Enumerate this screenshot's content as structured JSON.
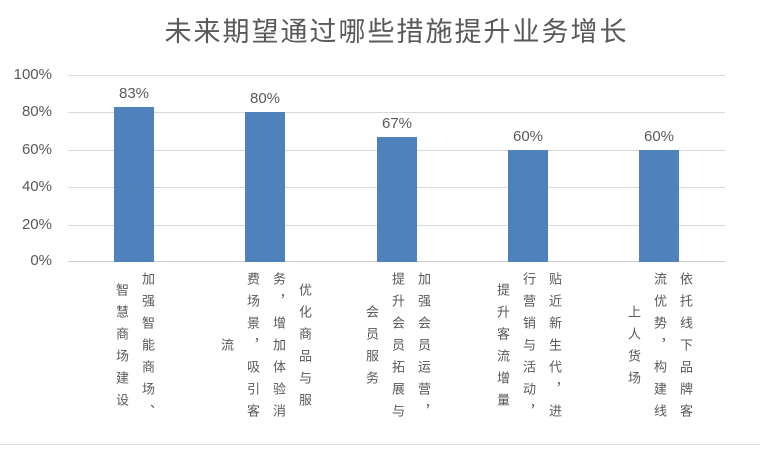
{
  "chart_data": {
    "type": "bar",
    "title": "未来期望通过哪些措施提升业务增长",
    "categories": [
      "加强智能商场、智慧商场建设",
      "优化商品与服务，增加体验消费场景，吸引客流",
      "加强会员运营，提升会员拓展与会员服务",
      "贴近新生代，进行营销与活动，提升客流增量",
      "依托线下品牌客流优势，构建线上人货场"
    ],
    "values": [
      83,
      80,
      67,
      60,
      60
    ],
    "data_labels": [
      "83%",
      "80%",
      "67%",
      "60%",
      "60%"
    ],
    "y_ticks": [
      "0%",
      "20%",
      "40%",
      "60%",
      "80%",
      "100%"
    ],
    "ylim": [
      0,
      100
    ],
    "grid": true,
    "legend": "none",
    "xlabel": "",
    "ylabel": "",
    "bar_color": "#4F81BD",
    "text_color": "#595959",
    "gridline_color": "#D9D9D9",
    "axisline_color": "#CCCCCC"
  }
}
